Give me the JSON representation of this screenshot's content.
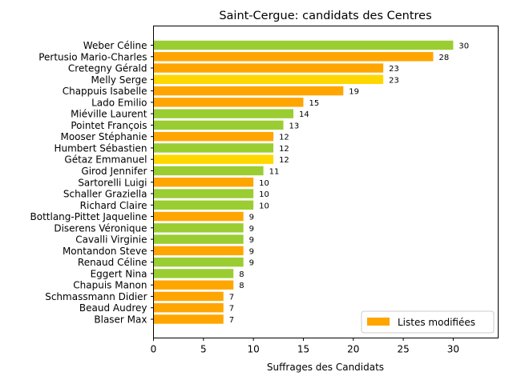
{
  "chart_data": {
    "type": "bar",
    "orientation": "horizontal",
    "title": "Saint-Cergue: candidats des Centres",
    "xlabel": "Suffrages des Candidats",
    "ylabel": "",
    "xlim": [
      0,
      34.5
    ],
    "xticks": [
      0,
      5,
      10,
      15,
      20,
      25,
      30
    ],
    "grid": false,
    "legend": {
      "position": "lower-right",
      "label": "Listes modifiées",
      "color": "#ffa500"
    },
    "bars": [
      {
        "name": "Weber Céline",
        "value": 30,
        "color": "#9acd32"
      },
      {
        "name": "Pertusio Mario-Charles",
        "value": 28,
        "color": "#ffa500"
      },
      {
        "name": "Cretegny Gérald",
        "value": 23,
        "color": "#ffa500"
      },
      {
        "name": "Melly Serge",
        "value": 23,
        "color": "#ffd700"
      },
      {
        "name": "Chappuis Isabelle",
        "value": 19,
        "color": "#ffa500"
      },
      {
        "name": "Lado Emilio",
        "value": 15,
        "color": "#ffa500"
      },
      {
        "name": "Miéville Laurent",
        "value": 14,
        "color": "#9acd32"
      },
      {
        "name": "Pointet François",
        "value": 13,
        "color": "#9acd32"
      },
      {
        "name": "Mooser Stéphanie",
        "value": 12,
        "color": "#ffa500"
      },
      {
        "name": "Humbert Sébastien",
        "value": 12,
        "color": "#9acd32"
      },
      {
        "name": "Gétaz Emmanuel",
        "value": 12,
        "color": "#ffd700"
      },
      {
        "name": "Girod Jennifer",
        "value": 11,
        "color": "#9acd32"
      },
      {
        "name": "Sartorelli Luigi",
        "value": 10,
        "color": "#ffa500"
      },
      {
        "name": "Schaller Graziella",
        "value": 10,
        "color": "#9acd32"
      },
      {
        "name": "Richard Claire",
        "value": 10,
        "color": "#9acd32"
      },
      {
        "name": "Bottlang-Pittet Jaqueline",
        "value": 9,
        "color": "#ffa500"
      },
      {
        "name": "Diserens Véronique",
        "value": 9,
        "color": "#9acd32"
      },
      {
        "name": "Cavalli Virginie",
        "value": 9,
        "color": "#9acd32"
      },
      {
        "name": "Montandon Steve",
        "value": 9,
        "color": "#ffa500"
      },
      {
        "name": "Renaud Céline",
        "value": 9,
        "color": "#9acd32"
      },
      {
        "name": "Eggert Nina",
        "value": 8,
        "color": "#9acd32"
      },
      {
        "name": "Chapuis Manon",
        "value": 8,
        "color": "#ffa500"
      },
      {
        "name": "Schmassmann Didier",
        "value": 7,
        "color": "#ffa500"
      },
      {
        "name": "Beaud Audrey",
        "value": 7,
        "color": "#ffa500"
      },
      {
        "name": "Blaser Max",
        "value": 7,
        "color": "#ffa500"
      }
    ]
  }
}
